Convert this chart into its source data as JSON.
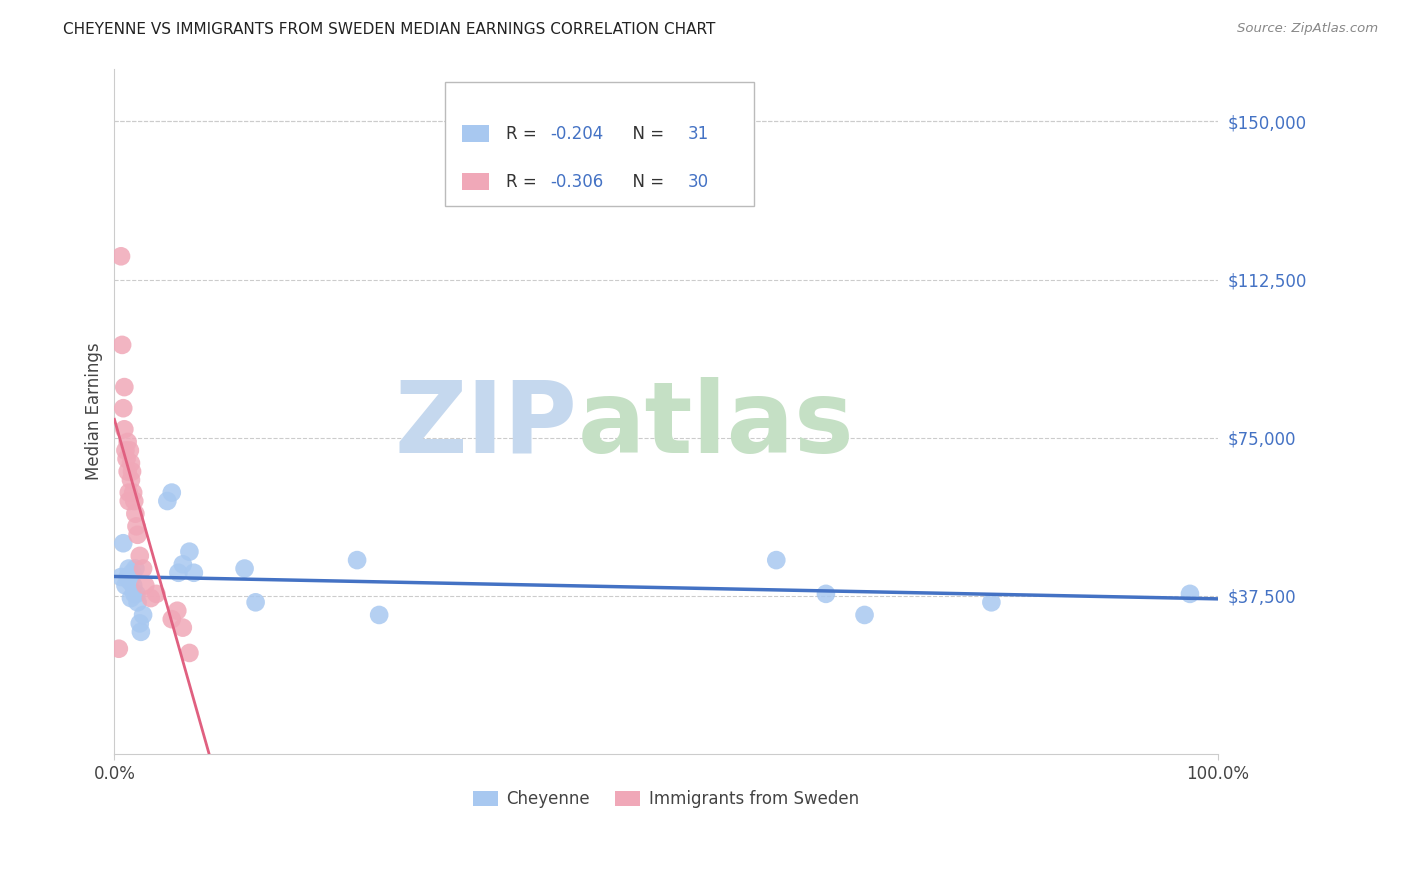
{
  "title": "CHEYENNE VS IMMIGRANTS FROM SWEDEN MEDIAN EARNINGS CORRELATION CHART",
  "source": "Source: ZipAtlas.com",
  "ylabel": "Median Earnings",
  "x_min": 0.0,
  "x_max": 1.0,
  "y_min": 0,
  "y_max": 162500,
  "yticks": [
    37500,
    75000,
    112500,
    150000
  ],
  "ytick_labels": [
    "$37,500",
    "$75,000",
    "$112,500",
    "$150,000"
  ],
  "xtick_labels": [
    "0.0%",
    "100.0%"
  ],
  "cheyenne_color": "#a8c8f0",
  "sweden_color": "#f0a8b8",
  "cheyenne_line_color": "#4472c4",
  "sweden_line_color": "#e06080",
  "R_cheyenne": -0.204,
  "N_cheyenne": 31,
  "R_sweden": -0.306,
  "N_sweden": 30,
  "grid_color": "#cccccc",
  "watermark_zip_color": "#c8dff0",
  "watermark_atlas_color": "#d8e8d0",
  "background_color": "#ffffff",
  "cheyenne_x": [
    0.006,
    0.008,
    0.01,
    0.012,
    0.013,
    0.014,
    0.015,
    0.016,
    0.017,
    0.018,
    0.019,
    0.02,
    0.021,
    0.023,
    0.024,
    0.026,
    0.048,
    0.052,
    0.058,
    0.062,
    0.068,
    0.072,
    0.118,
    0.128,
    0.22,
    0.24,
    0.6,
    0.645,
    0.68,
    0.795,
    0.975
  ],
  "cheyenne_y": [
    42000,
    50000,
    40000,
    42000,
    44000,
    41000,
    37000,
    43000,
    40000,
    38000,
    44000,
    38000,
    36000,
    31000,
    29000,
    33000,
    60000,
    62000,
    43000,
    45000,
    48000,
    43000,
    44000,
    36000,
    46000,
    33000,
    46000,
    38000,
    33000,
    36000,
    38000
  ],
  "sweden_x": [
    0.004,
    0.006,
    0.007,
    0.008,
    0.009,
    0.009,
    0.01,
    0.011,
    0.012,
    0.012,
    0.013,
    0.013,
    0.014,
    0.015,
    0.015,
    0.016,
    0.017,
    0.018,
    0.019,
    0.02,
    0.021,
    0.023,
    0.026,
    0.028,
    0.033,
    0.038,
    0.052,
    0.057,
    0.062,
    0.068
  ],
  "sweden_y": [
    25000,
    118000,
    97000,
    82000,
    77000,
    87000,
    72000,
    70000,
    67000,
    74000,
    62000,
    60000,
    72000,
    65000,
    69000,
    67000,
    62000,
    60000,
    57000,
    54000,
    52000,
    47000,
    44000,
    40000,
    37000,
    38000,
    32000,
    34000,
    30000,
    24000
  ]
}
